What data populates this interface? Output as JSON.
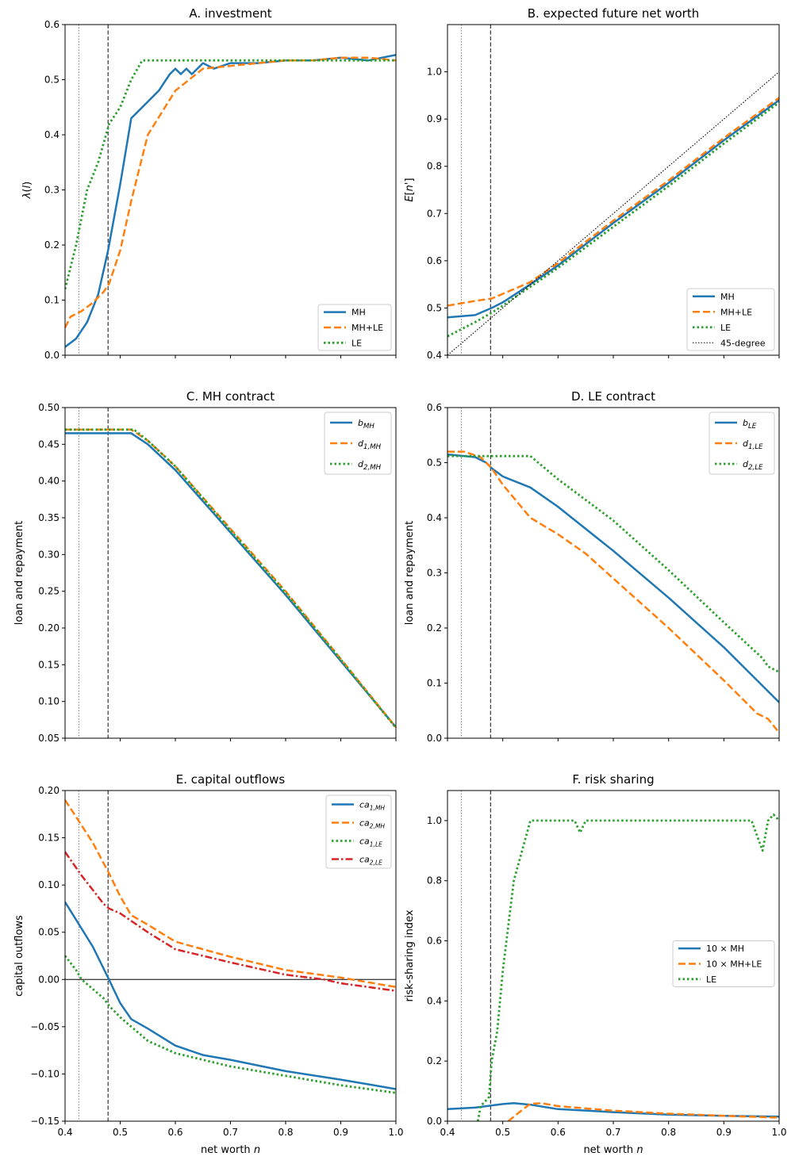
{
  "colors": {
    "blue": "#1f77b4",
    "orange": "#ff7f0e",
    "green": "#2ca02c",
    "red": "#d62728",
    "black": "#000000"
  },
  "reference_lines": {
    "dotted_gray_x": 0.425,
    "dashed_black_x": 0.478
  },
  "chart_data": [
    {
      "id": "A",
      "type": "line",
      "title": "A. investment",
      "xlabel": "",
      "ylabel": "λ(l)",
      "xlim": [
        0.4,
        1.0
      ],
      "ylim": [
        0.0,
        0.6
      ],
      "xticks": [
        0.4,
        0.5,
        0.6,
        0.7,
        0.8,
        0.9,
        1.0
      ],
      "xtick_labels": [
        "",
        "",
        "",
        "",
        "",
        "",
        ""
      ],
      "yticks": [
        0.0,
        0.1,
        0.2,
        0.3,
        0.4,
        0.5,
        0.6
      ],
      "ytick_labels": [
        "0.0",
        "0.1",
        "0.2",
        "0.3",
        "0.4",
        "0.5",
        "0.6"
      ],
      "legend_loc": "lower-right",
      "grid": false,
      "series": [
        {
          "name": "MH",
          "color": "#1f77b4",
          "dash": "solid",
          "x": [
            0.4,
            0.42,
            0.44,
            0.46,
            0.478,
            0.5,
            0.52,
            0.53,
            0.55,
            0.57,
            0.59,
            0.6,
            0.61,
            0.62,
            0.63,
            0.65,
            0.67,
            0.7,
            0.75,
            0.8,
            0.85,
            0.9,
            0.95,
            1.0
          ],
          "y": [
            0.015,
            0.03,
            0.06,
            0.11,
            0.19,
            0.31,
            0.43,
            0.44,
            0.46,
            0.48,
            0.51,
            0.52,
            0.51,
            0.52,
            0.51,
            0.53,
            0.52,
            0.53,
            0.53,
            0.535,
            0.535,
            0.54,
            0.535,
            0.545
          ]
        },
        {
          "name": "MH+LE",
          "color": "#ff7f0e",
          "dash": "dashed",
          "x": [
            0.4,
            0.41,
            0.43,
            0.45,
            0.47,
            0.48,
            0.5,
            0.52,
            0.55,
            0.6,
            0.65,
            0.7,
            0.75,
            0.8,
            0.85,
            0.9,
            0.95,
            1.0
          ],
          "y": [
            0.05,
            0.07,
            0.08,
            0.095,
            0.115,
            0.13,
            0.19,
            0.28,
            0.4,
            0.48,
            0.52,
            0.525,
            0.53,
            0.535,
            0.535,
            0.54,
            0.54,
            0.535
          ]
        },
        {
          "name": "LE",
          "color": "#2ca02c",
          "dash": "dotted",
          "x": [
            0.4,
            0.42,
            0.44,
            0.46,
            0.48,
            0.5,
            0.52,
            0.54,
            0.55,
            0.6,
            0.7,
            0.8,
            0.9,
            1.0
          ],
          "y": [
            0.12,
            0.2,
            0.3,
            0.35,
            0.42,
            0.45,
            0.5,
            0.535,
            0.535,
            0.535,
            0.535,
            0.535,
            0.535,
            0.535
          ]
        }
      ]
    },
    {
      "id": "B",
      "type": "line",
      "title": "B. expected future net worth",
      "xlabel": "",
      "ylabel": "E[n']",
      "xlim": [
        0.4,
        1.0
      ],
      "ylim": [
        0.4,
        1.1
      ],
      "xticks": [
        0.4,
        0.5,
        0.6,
        0.7,
        0.8,
        0.9,
        1.0
      ],
      "xtick_labels": [
        "",
        "",
        "",
        "",
        "",
        "",
        ""
      ],
      "yticks": [
        0.4,
        0.5,
        0.6,
        0.7,
        0.8,
        0.9,
        1.0
      ],
      "ytick_labels": [
        "0.4",
        "0.5",
        "0.6",
        "0.7",
        "0.8",
        "0.9",
        "1.0"
      ],
      "legend_loc": "lower-right",
      "grid": false,
      "series": [
        {
          "name": "MH",
          "color": "#1f77b4",
          "dash": "solid",
          "x": [
            0.4,
            0.45,
            0.48,
            0.5,
            0.55,
            0.6,
            0.7,
            0.8,
            0.9,
            1.0
          ],
          "y": [
            0.48,
            0.485,
            0.5,
            0.512,
            0.55,
            0.59,
            0.68,
            0.765,
            0.855,
            0.94
          ]
        },
        {
          "name": "MH+LE",
          "color": "#ff7f0e",
          "dash": "dashed",
          "x": [
            0.4,
            0.45,
            0.48,
            0.5,
            0.55,
            0.6,
            0.7,
            0.8,
            0.9,
            1.0
          ],
          "y": [
            0.505,
            0.515,
            0.52,
            0.53,
            0.555,
            0.595,
            0.685,
            0.77,
            0.86,
            0.945
          ]
        },
        {
          "name": "LE",
          "color": "#2ca02c",
          "dash": "dotted",
          "x": [
            0.4,
            0.45,
            0.48,
            0.5,
            0.55,
            0.6,
            0.7,
            0.8,
            0.9,
            1.0
          ],
          "y": [
            0.44,
            0.47,
            0.49,
            0.505,
            0.545,
            0.585,
            0.672,
            0.758,
            0.848,
            0.935
          ]
        },
        {
          "name": "45-degree",
          "color": "#000000",
          "dash": "thin-dotted",
          "x": [
            0.4,
            1.0
          ],
          "y": [
            0.4,
            1.0
          ]
        }
      ]
    },
    {
      "id": "C",
      "type": "line",
      "title": "C. MH contract",
      "xlabel": "",
      "ylabel": "loan and repayment",
      "xlim": [
        0.4,
        1.0
      ],
      "ylim": [
        0.05,
        0.5
      ],
      "xticks": [
        0.4,
        0.5,
        0.6,
        0.7,
        0.8,
        0.9,
        1.0
      ],
      "xtick_labels": [
        "",
        "",
        "",
        "",
        "",
        "",
        ""
      ],
      "yticks": [
        0.05,
        0.1,
        0.15,
        0.2,
        0.25,
        0.3,
        0.35,
        0.4,
        0.45,
        0.5
      ],
      "ytick_labels": [
        "0.05",
        "0.10",
        "0.15",
        "0.20",
        "0.25",
        "0.30",
        "0.35",
        "0.40",
        "0.45",
        "0.50"
      ],
      "legend_loc": "upper-right",
      "grid": false,
      "series": [
        {
          "name": "b_MH",
          "label_main": "b",
          "label_sub": "MH",
          "color": "#1f77b4",
          "dash": "solid",
          "x": [
            0.4,
            0.52,
            0.55,
            0.6,
            0.7,
            0.8,
            0.9,
            1.0
          ],
          "y": [
            0.465,
            0.465,
            0.45,
            0.415,
            0.33,
            0.245,
            0.155,
            0.065
          ]
        },
        {
          "name": "d_1,MH",
          "label_main": "d",
          "label_sub": "1,MH",
          "color": "#ff7f0e",
          "dash": "dashed",
          "x": [
            0.4,
            0.52,
            0.55,
            0.6,
            0.7,
            0.8,
            0.9,
            1.0
          ],
          "y": [
            0.47,
            0.47,
            0.455,
            0.42,
            0.335,
            0.25,
            0.158,
            0.065
          ]
        },
        {
          "name": "d_2,MH",
          "label_main": "d",
          "label_sub": "2,MH",
          "color": "#2ca02c",
          "dash": "dotted",
          "x": [
            0.4,
            0.525,
            0.55,
            0.6,
            0.7,
            0.8,
            0.9,
            1.0
          ],
          "y": [
            0.47,
            0.47,
            0.455,
            0.42,
            0.333,
            0.248,
            0.157,
            0.064
          ]
        }
      ]
    },
    {
      "id": "D",
      "type": "line",
      "title": "D. LE contract",
      "xlabel": "",
      "ylabel": "loan and repayment",
      "xlim": [
        0.4,
        1.0
      ],
      "ylim": [
        0.0,
        0.6
      ],
      "xticks": [
        0.4,
        0.5,
        0.6,
        0.7,
        0.8,
        0.9,
        1.0
      ],
      "xtick_labels": [
        "",
        "",
        "",
        "",
        "",
        "",
        ""
      ],
      "yticks": [
        0.0,
        0.1,
        0.2,
        0.3,
        0.4,
        0.5,
        0.6
      ],
      "ytick_labels": [
        "0.0",
        "0.1",
        "0.2",
        "0.3",
        "0.4",
        "0.5",
        "0.6"
      ],
      "legend_loc": "upper-right",
      "grid": false,
      "series": [
        {
          "name": "b_LE",
          "label_main": "b",
          "label_sub": "LE",
          "color": "#1f77b4",
          "dash": "solid",
          "x": [
            0.4,
            0.45,
            0.47,
            0.48,
            0.5,
            0.55,
            0.6,
            0.7,
            0.8,
            0.9,
            1.0
          ],
          "y": [
            0.515,
            0.51,
            0.5,
            0.49,
            0.475,
            0.455,
            0.42,
            0.34,
            0.255,
            0.165,
            0.065
          ]
        },
        {
          "name": "d_1,LE",
          "label_main": "d",
          "label_sub": "1,LE",
          "color": "#ff7f0e",
          "dash": "dashed",
          "x": [
            0.4,
            0.43,
            0.46,
            0.48,
            0.5,
            0.55,
            0.6,
            0.65,
            0.7,
            0.8,
            0.9,
            0.96,
            0.98,
            1.0
          ],
          "y": [
            0.52,
            0.52,
            0.51,
            0.49,
            0.46,
            0.4,
            0.37,
            0.335,
            0.29,
            0.2,
            0.105,
            0.045,
            0.035,
            0.01
          ]
        },
        {
          "name": "d_2,LE",
          "label_main": "d",
          "label_sub": "2,LE",
          "color": "#2ca02c",
          "dash": "dotted",
          "x": [
            0.4,
            0.45,
            0.5,
            0.55,
            0.6,
            0.7,
            0.8,
            0.9,
            0.97,
            0.98,
            1.0
          ],
          "y": [
            0.512,
            0.512,
            0.512,
            0.512,
            0.47,
            0.395,
            0.305,
            0.21,
            0.145,
            0.13,
            0.12
          ]
        }
      ]
    },
    {
      "id": "E",
      "type": "line",
      "title": "E. capital outflows",
      "xlabel": "net worth n",
      "ylabel": "capital outflows",
      "xlim": [
        0.4,
        1.0
      ],
      "ylim": [
        -0.15,
        0.2
      ],
      "xticks": [
        0.4,
        0.5,
        0.6,
        0.7,
        0.8,
        0.9,
        1.0
      ],
      "xtick_labels": [
        "0.4",
        "0.5",
        "0.6",
        "0.7",
        "0.8",
        "0.9",
        "1.0"
      ],
      "yticks": [
        -0.15,
        -0.1,
        -0.05,
        0.0,
        0.05,
        0.1,
        0.15,
        0.2
      ],
      "ytick_labels": [
        "−0.15",
        "−0.10",
        "−0.05",
        "0.00",
        "0.05",
        "0.10",
        "0.15",
        "0.20"
      ],
      "zero_line": true,
      "legend_loc": "upper-right",
      "grid": false,
      "series": [
        {
          "name": "ca_1,MH",
          "label_main": "ca",
          "label_sub": "1,MH",
          "color": "#1f77b4",
          "dash": "solid",
          "x": [
            0.4,
            0.45,
            0.478,
            0.5,
            0.52,
            0.55,
            0.6,
            0.65,
            0.7,
            0.8,
            0.9,
            0.95,
            1.0
          ],
          "y": [
            0.082,
            0.035,
            0.002,
            -0.025,
            -0.042,
            -0.052,
            -0.07,
            -0.08,
            -0.085,
            -0.097,
            -0.106,
            -0.111,
            -0.116
          ]
        },
        {
          "name": "ca_2,MH",
          "label_main": "ca",
          "label_sub": "2,MH",
          "color": "#ff7f0e",
          "dash": "dashed",
          "x": [
            0.4,
            0.45,
            0.48,
            0.5,
            0.52,
            0.55,
            0.6,
            0.65,
            0.7,
            0.8,
            0.9,
            1.0
          ],
          "y": [
            0.19,
            0.145,
            0.112,
            0.088,
            0.068,
            0.058,
            0.04,
            0.032,
            0.024,
            0.01,
            0.002,
            -0.008
          ]
        },
        {
          "name": "ca_1,LE",
          "label_main": "ca",
          "label_sub": "1,LE",
          "color": "#2ca02c",
          "dash": "dotted",
          "x": [
            0.4,
            0.42,
            0.43,
            0.45,
            0.47,
            0.48,
            0.5,
            0.55,
            0.6,
            0.7,
            0.8,
            0.9,
            1.0
          ],
          "y": [
            0.025,
            0.01,
            0.0,
            -0.01,
            -0.02,
            -0.028,
            -0.04,
            -0.065,
            -0.078,
            -0.092,
            -0.102,
            -0.112,
            -0.12
          ]
        },
        {
          "name": "ca_2,LE",
          "label_main": "ca",
          "label_sub": "2,LE",
          "color": "#d62728",
          "dash": "dashdot",
          "x": [
            0.4,
            0.43,
            0.45,
            0.47,
            0.48,
            0.5,
            0.55,
            0.6,
            0.65,
            0.7,
            0.8,
            0.87,
            0.9,
            0.95,
            1.0
          ],
          "y": [
            0.135,
            0.11,
            0.095,
            0.08,
            0.075,
            0.07,
            0.05,
            0.032,
            0.025,
            0.018,
            0.005,
            0.0,
            -0.004,
            -0.008,
            -0.012
          ]
        }
      ]
    },
    {
      "id": "F",
      "type": "line",
      "title": "F. risk sharing",
      "xlabel": "net worth n",
      "ylabel": "risk-sharing index",
      "xlim": [
        0.4,
        1.0
      ],
      "ylim": [
        0.0,
        1.1
      ],
      "xticks": [
        0.4,
        0.5,
        0.6,
        0.7,
        0.8,
        0.9,
        1.0
      ],
      "xtick_labels": [
        "0.4",
        "0.5",
        "0.6",
        "0.7",
        "0.8",
        "0.9",
        "1.0"
      ],
      "yticks": [
        0.0,
        0.2,
        0.4,
        0.6,
        0.8,
        1.0
      ],
      "ytick_labels": [
        "0.0",
        "0.2",
        "0.4",
        "0.6",
        "0.8",
        "1.0"
      ],
      "legend_loc": "center-right",
      "grid": false,
      "series": [
        {
          "name": "10 × MH",
          "color": "#1f77b4",
          "dash": "solid",
          "x": [
            0.4,
            0.45,
            0.5,
            0.52,
            0.55,
            0.6,
            0.7,
            0.8,
            0.9,
            1.0
          ],
          "y": [
            0.04,
            0.045,
            0.057,
            0.06,
            0.055,
            0.04,
            0.03,
            0.022,
            0.018,
            0.015
          ]
        },
        {
          "name": "10 × MH+LE",
          "color": "#ff7f0e",
          "dash": "dashed",
          "x": [
            0.51,
            0.53,
            0.55,
            0.57,
            0.6,
            0.7,
            0.8,
            0.9,
            1.0
          ],
          "y": [
            0.0,
            0.03,
            0.058,
            0.06,
            0.05,
            0.035,
            0.025,
            0.018,
            0.012
          ]
        },
        {
          "name": "LE",
          "color": "#2ca02c",
          "dash": "dotted",
          "x": [
            0.455,
            0.46,
            0.47,
            0.475,
            0.48,
            0.49,
            0.5,
            0.52,
            0.55,
            0.6,
            0.63,
            0.64,
            0.65,
            0.66,
            0.7,
            0.8,
            0.9,
            0.95,
            0.97,
            0.98,
            0.99,
            1.0
          ],
          "y": [
            0.0,
            0.05,
            0.07,
            0.08,
            0.2,
            0.3,
            0.5,
            0.8,
            1.0,
            1.0,
            1.0,
            0.96,
            1.0,
            1.0,
            1.0,
            1.0,
            1.0,
            1.0,
            0.9,
            1.0,
            1.02,
            1.0
          ]
        }
      ]
    }
  ]
}
